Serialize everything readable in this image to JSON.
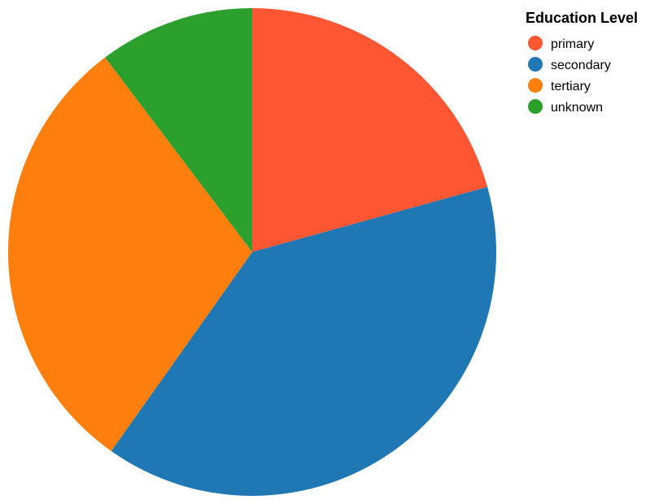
{
  "chart_data": {
    "type": "pie",
    "title": "",
    "legend_title": "Education Level",
    "legend_position": "top-right",
    "categories": [
      "primary",
      "secondary",
      "tertiary",
      "unknown"
    ],
    "values": [
      20.7,
      39.1,
      29.9,
      10.3
    ],
    "colors": [
      "#ff5733",
      "#1f77b4",
      "#ff7f0e",
      "#2ca02c"
    ],
    "start_angle_deg": 0,
    "direction": "clockwise"
  }
}
